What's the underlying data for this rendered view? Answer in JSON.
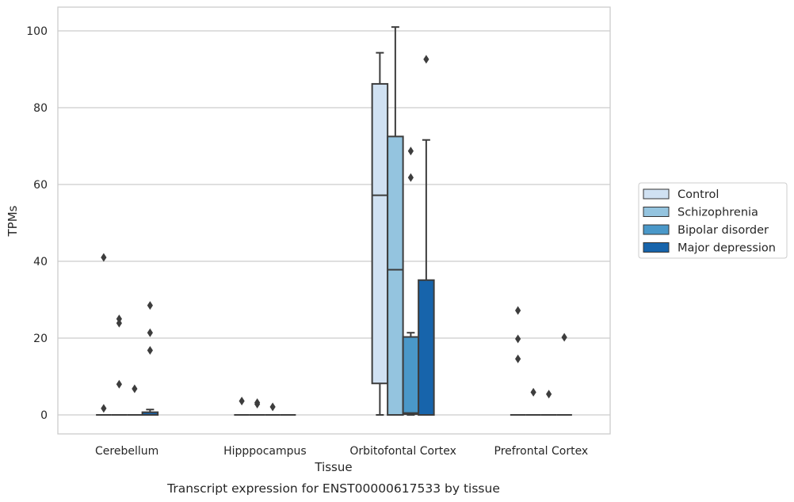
{
  "chart_data": {
    "type": "boxplot",
    "caption": "Transcript expression for ENST00000617533 by tissue",
    "xlabel": "Tissue",
    "ylabel": "TPMs",
    "ylim": [
      -5,
      106
    ],
    "yticks": [
      0,
      20,
      40,
      60,
      80,
      100
    ],
    "grid": true,
    "legend_position": "right",
    "categories": [
      "Cerebellum",
      "Hipppocampus",
      "Orbitofontal Cortex",
      "Prefrontal Cortex"
    ],
    "series": [
      {
        "name": "Control",
        "color": "#d0e1f2",
        "boxes": [
          {
            "whislo": 0,
            "q1": 0,
            "med": 0,
            "q3": 0,
            "whishi": 0,
            "fliers": [
              41,
              1.7
            ]
          },
          {
            "whislo": 0,
            "q1": 0,
            "med": 0,
            "q3": 0,
            "whishi": 0,
            "fliers": [
              3.6
            ]
          },
          {
            "whislo": 0,
            "q1": 8.2,
            "med": 57.2,
            "q3": 86.2,
            "whishi": 94.3,
            "fliers": []
          },
          {
            "whislo": 0,
            "q1": 0,
            "med": 0,
            "q3": 0,
            "whishi": 0,
            "fliers": [
              27.2,
              19.8,
              14.6
            ]
          }
        ]
      },
      {
        "name": "Schizophrenia",
        "color": "#94c4df",
        "boxes": [
          {
            "whislo": 0,
            "q1": 0,
            "med": 0,
            "q3": 0,
            "whishi": 0,
            "fliers": [
              25,
              23.9,
              8
            ]
          },
          {
            "whislo": 0,
            "q1": 0,
            "med": 0,
            "q3": 0,
            "whishi": 0,
            "fliers": [
              3.2,
              2.8
            ]
          },
          {
            "whislo": 0,
            "q1": 0,
            "med": 37.8,
            "q3": 72.5,
            "whishi": 101,
            "fliers": []
          },
          {
            "whislo": 0,
            "q1": 0,
            "med": 0,
            "q3": 0,
            "whishi": 0,
            "fliers": [
              5.9
            ]
          }
        ]
      },
      {
        "name": "Bipolar disorder",
        "color": "#4a98c9",
        "boxes": [
          {
            "whislo": 0,
            "q1": 0,
            "med": 0,
            "q3": 0,
            "whishi": 0,
            "fliers": [
              6.8
            ]
          },
          {
            "whislo": 0,
            "q1": 0,
            "med": 0,
            "q3": 0,
            "whishi": 0,
            "fliers": [
              2.1
            ]
          },
          {
            "whislo": 0,
            "q1": 0.2,
            "med": 0.5,
            "q3": 20.3,
            "whishi": 21.4,
            "fliers": [
              68.7,
              61.8
            ]
          },
          {
            "whislo": 0,
            "q1": 0,
            "med": 0,
            "q3": 0,
            "whishi": 0,
            "fliers": [
              5.4
            ]
          }
        ]
      },
      {
        "name": "Major depression",
        "color": "#1764ab",
        "boxes": [
          {
            "whislo": 0,
            "q1": 0,
            "med": 0,
            "q3": 0.7,
            "whishi": 1.4,
            "fliers": [
              28.5,
              21.4,
              16.8
            ]
          },
          {
            "whislo": 0,
            "q1": 0,
            "med": 0,
            "q3": 0,
            "whishi": 0,
            "fliers": []
          },
          {
            "whislo": 0,
            "q1": 0,
            "med": 0,
            "q3": 35.1,
            "whishi": 71.6,
            "fliers": [
              92.6
            ]
          },
          {
            "whislo": 0,
            "q1": 0,
            "med": 0,
            "q3": 0,
            "whishi": 0,
            "fliers": [
              20.2
            ]
          }
        ]
      }
    ]
  }
}
